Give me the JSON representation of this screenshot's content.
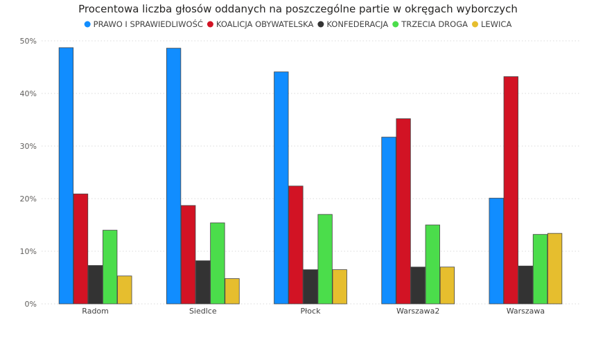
{
  "chart_data": {
    "type": "bar",
    "title": "Procentowa liczba głosów oddanych na poszczególne partie w okręgach wyborczych",
    "xlabel": "",
    "ylabel": "",
    "ylim": [
      0,
      50
    ],
    "y_tick_labels": [
      "0%",
      "10%",
      "20%",
      "30%",
      "40%",
      "50%"
    ],
    "y_ticks": [
      0,
      10,
      20,
      30,
      40,
      50
    ],
    "grid": true,
    "legend_position": "top-center",
    "categories": [
      "Radom",
      "Siedlce",
      "Płock",
      "Warszawa2",
      "Warszawa"
    ],
    "series": [
      {
        "name": "PRAWO I SPRAWIEDLIWOŚĆ",
        "color": "#118DFF",
        "values": [
          48.7,
          48.6,
          44.1,
          31.7,
          20.1
        ]
      },
      {
        "name": "KOALICJA OBYWATELSKA",
        "color": "#D21324",
        "values": [
          20.9,
          18.7,
          22.4,
          35.2,
          43.2
        ]
      },
      {
        "name": "KONFEDERACJA",
        "color": "#333333",
        "values": [
          7.3,
          8.2,
          6.5,
          7.0,
          7.2
        ]
      },
      {
        "name": "TRZECIA DROGA",
        "color": "#4BDD4B",
        "values": [
          14.0,
          15.4,
          17.0,
          15.0,
          13.2
        ]
      },
      {
        "name": "LEWICA",
        "color": "#E6BE2E",
        "values": [
          5.3,
          4.8,
          6.5,
          7.0,
          13.4
        ]
      }
    ]
  }
}
